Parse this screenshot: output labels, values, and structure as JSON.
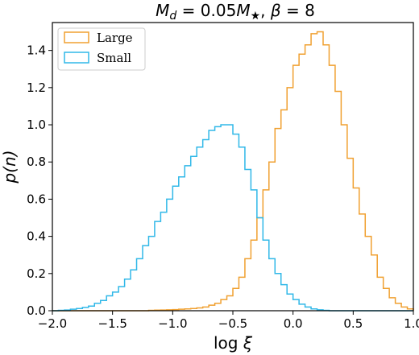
{
  "chart_data": {
    "type": "histogram-step",
    "title": "M_d = 0.05M_★, β = 8",
    "title_parts": {
      "m": "M",
      "d_sub": "d",
      "eq1": " = 0.05",
      "m2": "M",
      "star_sub": "★",
      "sep": ", ",
      "beta": "β",
      "eq2": " = 8"
    },
    "xlabel": "log ξ",
    "xlabel_parts": {
      "log": "log ",
      "xi": "ξ"
    },
    "ylabel": "p(n)",
    "xlim": [
      -2.0,
      1.0
    ],
    "ylim": [
      0.0,
      1.55
    ],
    "x_ticks": [
      -2.0,
      -1.5,
      -1.0,
      -0.5,
      0.0,
      0.5,
      1.0
    ],
    "x_tick_labels": [
      "−2.0",
      "−1.5",
      "−1.0",
      "−0.5",
      "0.0",
      "0.5",
      "1.0"
    ],
    "y_ticks": [
      0.0,
      0.2,
      0.4,
      0.6,
      0.8,
      1.0,
      1.2,
      1.4
    ],
    "y_tick_labels": [
      "0.0",
      "0.2",
      "0.4",
      "0.6",
      "0.8",
      "1.0",
      "1.2",
      "1.4"
    ],
    "bin_start": -2.0,
    "bin_width": 0.05,
    "legend_position": "top-left",
    "series": [
      {
        "name": "Large",
        "color": "#f0a030",
        "values": [
          0,
          0,
          0,
          0,
          0,
          0,
          0,
          0,
          0,
          0,
          0,
          0,
          0,
          0,
          0,
          0,
          0.002,
          0.003,
          0.004,
          0.005,
          0.006,
          0.008,
          0.01,
          0.012,
          0.015,
          0.02,
          0.03,
          0.04,
          0.06,
          0.08,
          0.12,
          0.18,
          0.28,
          0.38,
          0.5,
          0.65,
          0.8,
          0.98,
          1.08,
          1.2,
          1.32,
          1.38,
          1.43,
          1.49,
          1.5,
          1.43,
          1.32,
          1.18,
          1.0,
          0.82,
          0.66,
          0.52,
          0.4,
          0.3,
          0.18,
          0.12,
          0.07,
          0.04,
          0.02,
          0.01
        ]
      },
      {
        "name": "Small",
        "color": "#30b8e8",
        "values": [
          0,
          0.002,
          0.004,
          0.008,
          0.012,
          0.018,
          0.025,
          0.04,
          0.055,
          0.08,
          0.1,
          0.13,
          0.17,
          0.22,
          0.28,
          0.35,
          0.4,
          0.48,
          0.53,
          0.6,
          0.67,
          0.72,
          0.78,
          0.83,
          0.88,
          0.92,
          0.97,
          0.99,
          1.0,
          1.0,
          0.95,
          0.88,
          0.76,
          0.65,
          0.5,
          0.38,
          0.28,
          0.2,
          0.14,
          0.09,
          0.06,
          0.035,
          0.02,
          0.01,
          0.005,
          0.002,
          0,
          0,
          0,
          0,
          0,
          0,
          0,
          0,
          0,
          0,
          0,
          0,
          0,
          0
        ]
      }
    ]
  }
}
